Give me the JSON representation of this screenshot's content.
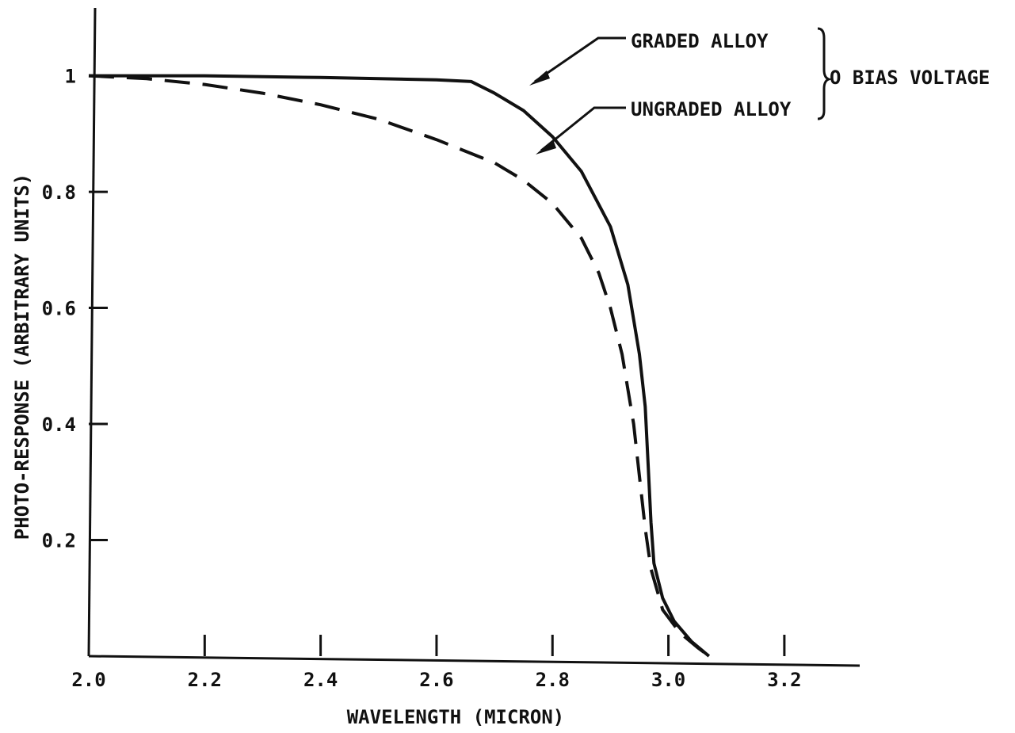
{
  "chart_data": {
    "type": "line",
    "xlabel": "WAVELENGTH (MICRON)",
    "ylabel": "PHOTO-RESPONSE (ARBITRARY UNITS)",
    "xlim": [
      2.0,
      3.33
    ],
    "ylim": [
      0.0,
      1.08
    ],
    "x_ticks": [
      {
        "value": 2.0,
        "label": "2.0"
      },
      {
        "value": 2.2,
        "label": "2.2"
      },
      {
        "value": 2.4,
        "label": "2.4"
      },
      {
        "value": 2.6,
        "label": "2.6"
      },
      {
        "value": 2.8,
        "label": "2.8"
      },
      {
        "value": 3.0,
        "label": "3.0"
      },
      {
        "value": 3.2,
        "label": "3.2"
      }
    ],
    "y_ticks": [
      {
        "value": 0.2,
        "label": "0.2"
      },
      {
        "value": 0.4,
        "label": "0.4"
      },
      {
        "value": 0.6,
        "label": "0.6"
      },
      {
        "value": 0.8,
        "label": "0.8"
      },
      {
        "value": 1.0,
        "label": "1"
      }
    ],
    "grid": false,
    "legend_group_label": "O BIAS VOLTAGE",
    "series": [
      {
        "name": "GRADED ALLOY",
        "style": "solid",
        "color": "#111111",
        "points": [
          [
            2.0,
            1.0
          ],
          [
            2.2,
            1.0
          ],
          [
            2.4,
            0.997
          ],
          [
            2.6,
            0.993
          ],
          [
            2.66,
            0.99
          ],
          [
            2.7,
            0.97
          ],
          [
            2.75,
            0.94
          ],
          [
            2.8,
            0.895
          ],
          [
            2.85,
            0.835
          ],
          [
            2.9,
            0.74
          ],
          [
            2.93,
            0.64
          ],
          [
            2.95,
            0.52
          ],
          [
            2.96,
            0.43
          ],
          [
            2.965,
            0.33
          ],
          [
            2.97,
            0.23
          ],
          [
            2.975,
            0.16
          ],
          [
            2.99,
            0.1
          ],
          [
            3.01,
            0.06
          ],
          [
            3.04,
            0.025
          ],
          [
            3.07,
            0.0
          ]
        ]
      },
      {
        "name": "UNGRADED ALLOY",
        "style": "dashed",
        "color": "#111111",
        "points": [
          [
            2.0,
            1.0
          ],
          [
            2.1,
            0.995
          ],
          [
            2.2,
            0.985
          ],
          [
            2.3,
            0.97
          ],
          [
            2.4,
            0.95
          ],
          [
            2.5,
            0.925
          ],
          [
            2.6,
            0.89
          ],
          [
            2.7,
            0.85
          ],
          [
            2.75,
            0.82
          ],
          [
            2.8,
            0.78
          ],
          [
            2.85,
            0.72
          ],
          [
            2.88,
            0.66
          ],
          [
            2.9,
            0.6
          ],
          [
            2.92,
            0.52
          ],
          [
            2.94,
            0.4
          ],
          [
            2.95,
            0.31
          ],
          [
            2.96,
            0.22
          ],
          [
            2.97,
            0.15
          ],
          [
            2.99,
            0.08
          ],
          [
            3.02,
            0.04
          ],
          [
            3.05,
            0.015
          ],
          [
            3.07,
            0.0
          ]
        ]
      }
    ]
  }
}
